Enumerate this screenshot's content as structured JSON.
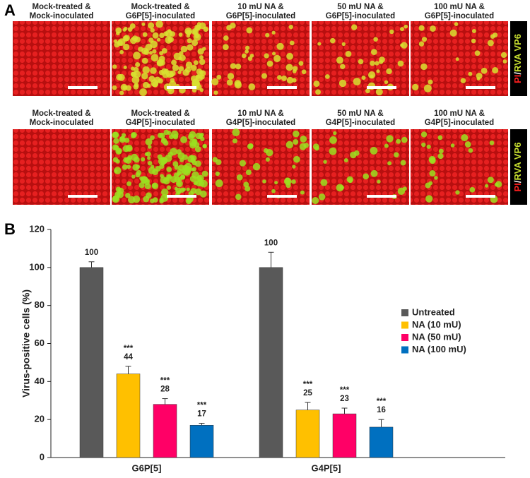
{
  "panel_a": {
    "label": "A",
    "rows": [
      {
        "captions": [
          [
            "Mock-treated &",
            "Mock-inoculated"
          ],
          [
            "Mock-treated &",
            "G6P[5]-inoculated"
          ],
          [
            "10 mU NA &",
            "G6P[5]-inoculated"
          ],
          [
            "50 mU NA &",
            "G6P[5]-inoculated"
          ],
          [
            "100 mU NA &",
            "G6P[5]-inoculated"
          ]
        ],
        "side_label": [
          "PI",
          "/",
          "RVA VP6"
        ]
      },
      {
        "captions": [
          [
            "Mock-treated &",
            "Mock-inoculated"
          ],
          [
            "Mock-treated &",
            "G4P[5]-inoculated"
          ],
          [
            "10 mU NA &",
            "G4P[5]-inoculated"
          ],
          [
            "50 mU NA &",
            "G4P[5]-inoculated"
          ],
          [
            "100 mU NA &",
            "G4P[5]-inoculated"
          ]
        ],
        "side_label": [
          "PI",
          "/",
          "RVA VP6"
        ]
      }
    ]
  },
  "panel_b": {
    "label": "B"
  },
  "chart_data": {
    "type": "bar",
    "y_label": "Virus-positive cells (%)",
    "categories": [
      "G6P[5]",
      "G4P[5]"
    ],
    "series": [
      {
        "name": "Untreated",
        "color": "#595959",
        "values": [
          100,
          100
        ],
        "errors": [
          3,
          8
        ]
      },
      {
        "name": "NA (10 mU)",
        "color": "#ffc000",
        "values": [
          44,
          25
        ],
        "errors": [
          4,
          4
        ],
        "annotations": [
          "***",
          "***"
        ]
      },
      {
        "name": "NA (50 mU)",
        "color": "#ff0066",
        "values": [
          28,
          23
        ],
        "errors": [
          3,
          3
        ],
        "annotations": [
          "***",
          "***"
        ]
      },
      {
        "name": "NA (100 mU)",
        "color": "#0070c0",
        "values": [
          17,
          16
        ],
        "errors": [
          1,
          4
        ],
        "annotations": [
          "***",
          "***"
        ]
      }
    ],
    "ylim": [
      0,
      120
    ],
    "yticks": [
      0,
      20,
      40,
      60,
      80,
      100,
      120
    ],
    "legend": "right"
  }
}
